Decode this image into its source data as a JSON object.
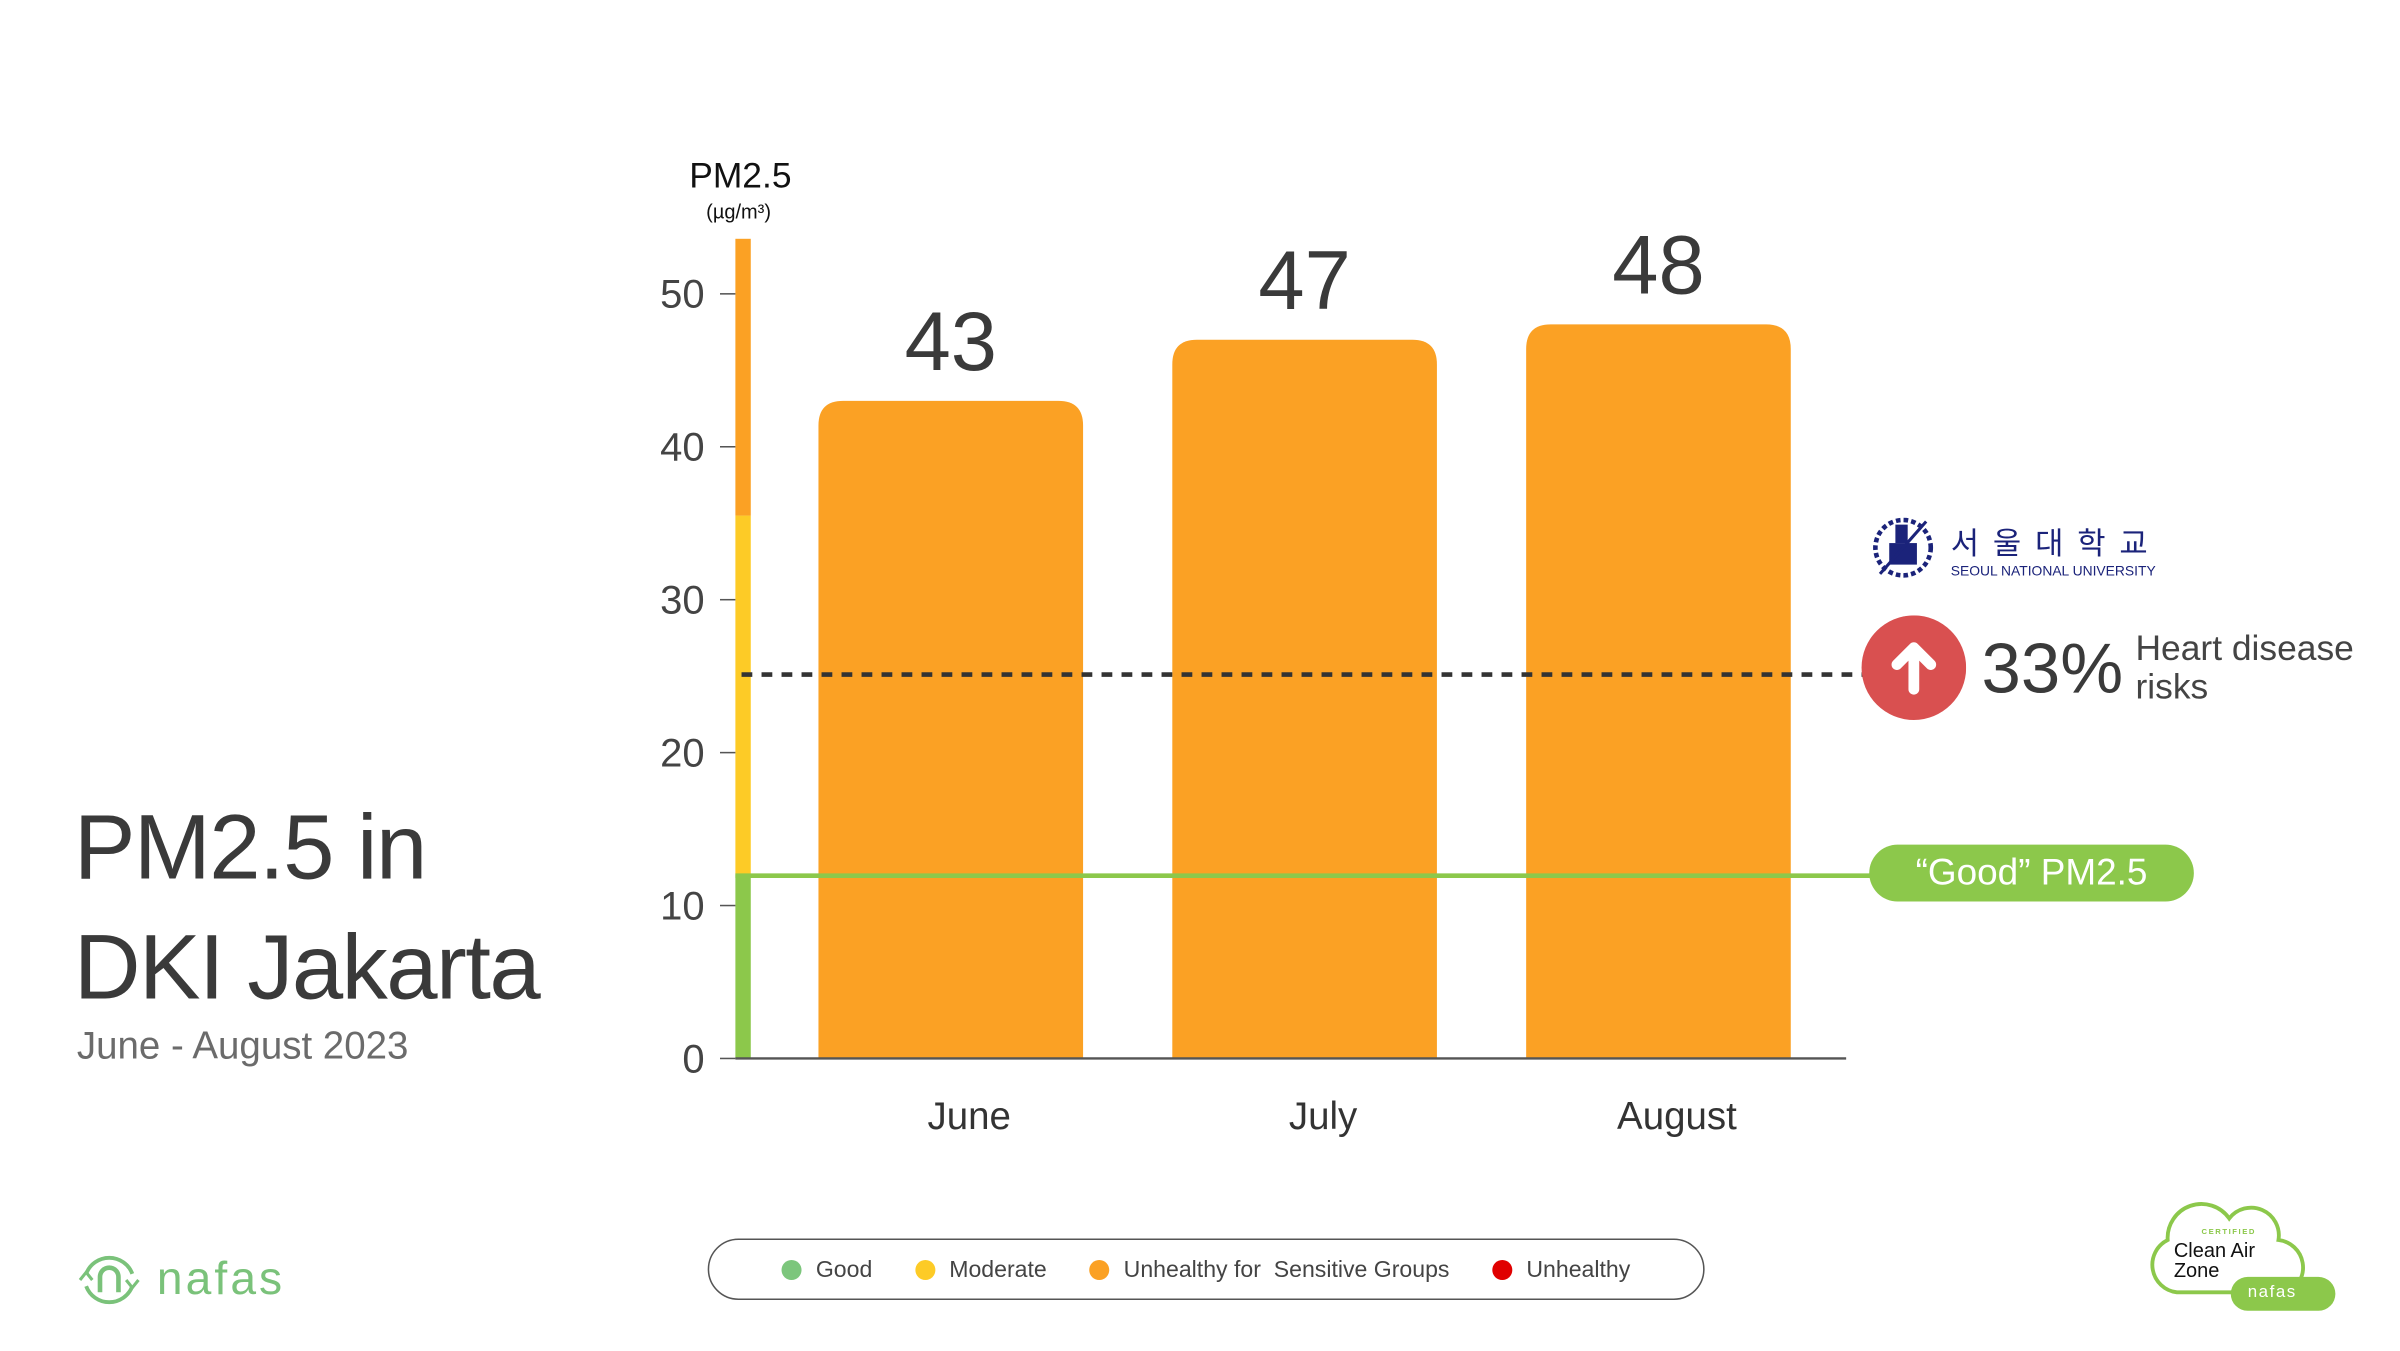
{
  "title_line1": "PM2.5 in",
  "title_line2": "DKI Jakarta",
  "subtitle": "June - August 2023",
  "chart_data": {
    "type": "bar",
    "title": "PM2.5 in DKI Jakarta",
    "ylabel": "PM2.5",
    "yunit": "(µg/m³)",
    "categories": [
      "June",
      "July",
      "August"
    ],
    "values": [
      43,
      47,
      48
    ],
    "data_labels": [
      "43",
      "47",
      "48"
    ],
    "ylim": [
      0,
      55
    ],
    "yticks": [
      0,
      10,
      20,
      30,
      40,
      50
    ],
    "ytick_labels": [
      "0",
      "10",
      "20",
      "30",
      "40",
      "50"
    ],
    "bar_color": "#fba124",
    "reference_lines": [
      {
        "name": "heart-risk",
        "value": 25,
        "style": "dotted",
        "color": "#333333"
      },
      {
        "name": "good",
        "value": 12,
        "style": "solid",
        "color": "#8cc84b",
        "label": "“Good” PM2.5"
      }
    ],
    "scale_bands": [
      {
        "from": 0,
        "to": 12,
        "color": "#8cc84b"
      },
      {
        "from": 12,
        "to": 35.5,
        "color": "#fdcb26"
      },
      {
        "from": 35.5,
        "to": 53.6,
        "color": "#fba124"
      }
    ]
  },
  "annotation": {
    "org_korean": "서울대학교",
    "org_english": "SEOUL NATIONAL UNIVERSITY",
    "percent": "33%",
    "text_line1": "Heart disease",
    "text_line2": "risks",
    "icon": "arrow-up-icon",
    "color": "#d95050"
  },
  "legend": [
    {
      "label": "Good",
      "color": "#7cc67c"
    },
    {
      "label": "Moderate",
      "color": "#fdcb26"
    },
    {
      "label": "Unhealthy for  Sensitive Groups",
      "color": "#fba124"
    },
    {
      "label": "Unhealthy",
      "color": "#e00000"
    }
  ],
  "brand": {
    "name": "nafas"
  },
  "badge": {
    "top": "CERTIFIED",
    "line1": "Clean Air",
    "line2": "Zone",
    "brand": "nafas"
  }
}
